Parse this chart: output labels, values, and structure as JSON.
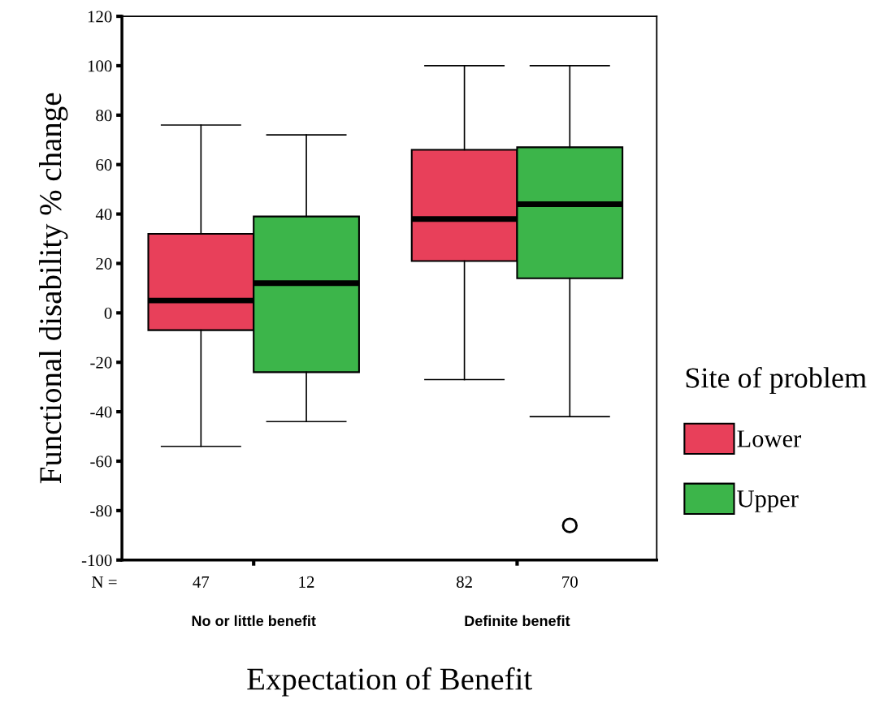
{
  "chart_data": {
    "type": "box",
    "ylabel": "Functional disability % change",
    "xlabel": "Expectation of Benefit",
    "legend_title": "Site of problem",
    "categories": [
      "No or little benefit",
      "Definite benefit"
    ],
    "series": [
      {
        "name": "Lower",
        "color": "#e8405a",
        "boxes": [
          {
            "low": -54,
            "q1": -7,
            "median": 5,
            "q3": 32,
            "high": 76
          },
          {
            "low": -27,
            "q1": 21,
            "median": 38,
            "q3": 66,
            "high": 100
          }
        ]
      },
      {
        "name": "Upper",
        "color": "#3cb54a",
        "boxes": [
          {
            "low": -44,
            "q1": -24,
            "median": 12,
            "q3": 39,
            "high": 72
          },
          {
            "low": -42,
            "q1": 14,
            "median": 44,
            "q3": 67,
            "high": 100,
            "outliers": [
              -86
            ]
          }
        ]
      }
    ],
    "ylim": [
      -100,
      120
    ],
    "yticks": [
      -100,
      -80,
      -60,
      -40,
      -20,
      0,
      20,
      40,
      60,
      80,
      100,
      120
    ],
    "annotations": [
      "N =",
      "47",
      "12",
      "82",
      "70"
    ],
    "legend": "right",
    "grid": false,
    "marker": "circle"
  }
}
